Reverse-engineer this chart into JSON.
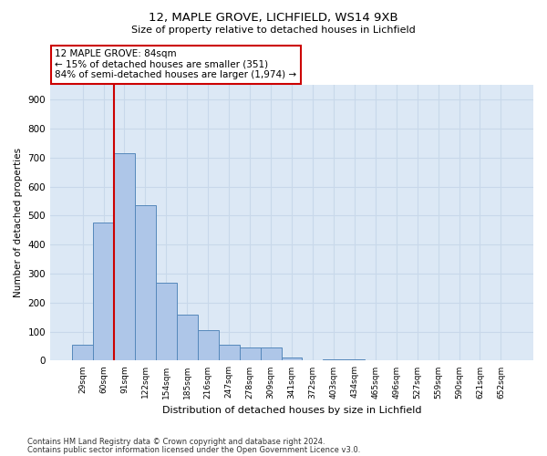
{
  "title_line1": "12, MAPLE GROVE, LICHFIELD, WS14 9XB",
  "title_line2": "Size of property relative to detached houses in Lichfield",
  "xlabel": "Distribution of detached houses by size in Lichfield",
  "ylabel": "Number of detached properties",
  "bins": [
    "29sqm",
    "60sqm",
    "91sqm",
    "122sqm",
    "154sqm",
    "185sqm",
    "216sqm",
    "247sqm",
    "278sqm",
    "309sqm",
    "341sqm",
    "372sqm",
    "403sqm",
    "434sqm",
    "465sqm",
    "496sqm",
    "527sqm",
    "559sqm",
    "590sqm",
    "621sqm",
    "652sqm"
  ],
  "bar_heights": [
    55,
    475,
    715,
    535,
    270,
    160,
    105,
    55,
    45,
    45,
    10,
    0,
    5,
    5,
    0,
    0,
    0,
    0,
    0,
    0,
    0
  ],
  "bar_color": "#aec6e8",
  "bar_edge_color": "#5588bb",
  "annotation_text": "12 MAPLE GROVE: 84sqm\n← 15% of detached houses are smaller (351)\n84% of semi-detached houses are larger (1,974) →",
  "annotation_box_color": "#ffffff",
  "annotation_edge_color": "#cc0000",
  "red_line_bin_index": 2,
  "ylim": [
    0,
    950
  ],
  "yticks": [
    0,
    100,
    200,
    300,
    400,
    500,
    600,
    700,
    800,
    900
  ],
  "grid_color": "#c8d8ea",
  "background_color": "#dce8f5",
  "footer_line1": "Contains HM Land Registry data © Crown copyright and database right 2024.",
  "footer_line2": "Contains public sector information licensed under the Open Government Licence v3.0."
}
